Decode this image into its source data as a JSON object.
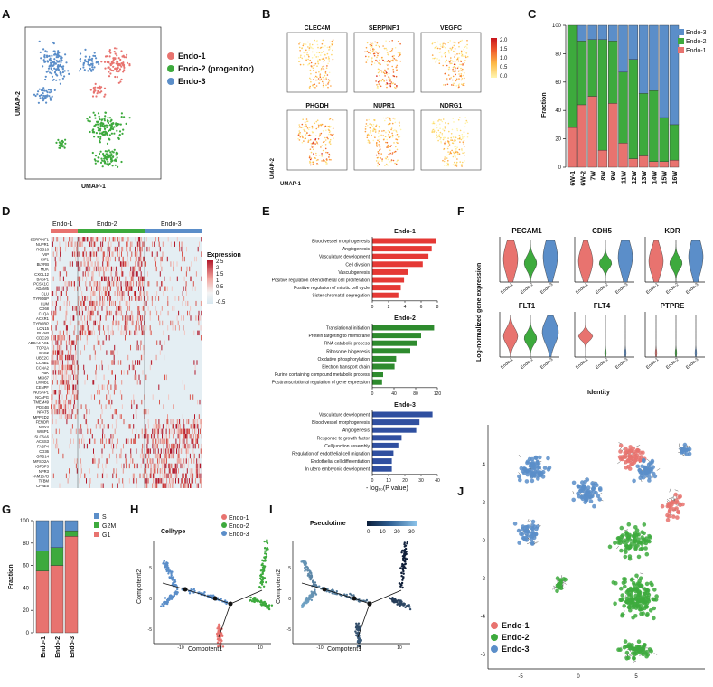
{
  "colors": {
    "endo1": "#E8736F",
    "endo2": "#3DAA3D",
    "endo3": "#5B8EC9",
    "g1": "#E8736F",
    "g2m": "#3DAA3D",
    "s": "#5B8EC9",
    "go1": "#E53935",
    "go2": "#2E8B2E",
    "go3": "#2F4FA0"
  },
  "panel_labels": [
    "A",
    "B",
    "C",
    "D",
    "E",
    "F",
    "G",
    "H",
    "I",
    "J"
  ],
  "panelA": {
    "xlabel": "UMAP-1",
    "ylabel": "UMAP-2",
    "legend": [
      "Endo-1",
      "Endo-2 (progenitor)",
      "Endo-3"
    ]
  },
  "panelB": {
    "genes": [
      "CLEC4M",
      "SERPINF1",
      "VEGFC",
      "PHGDH",
      "NUPR1",
      "NDRG1"
    ],
    "xlabel": "UMAP-1",
    "ylabel": "UMAP-2",
    "colorbar_ticks": [
      "2.0",
      "1.5",
      "1.0",
      "0.5",
      "0.0"
    ]
  },
  "panelC": {
    "ylabel": "Fraction",
    "y_ticks": [
      "0",
      "20",
      "40",
      "60",
      "80",
      "100"
    ],
    "legend": [
      "Endo-3",
      "Endo-2",
      "Endo-1"
    ]
  },
  "panelD": {
    "groups": [
      "Endo-1",
      "Endo-2",
      "Endo-3"
    ],
    "legend_title": "Expression",
    "legend_ticks": [
      "2.5",
      "2",
      "1.5",
      "1",
      "0.5",
      "0",
      "-0.5"
    ],
    "genes": [
      "SERPINF1",
      "NUPR1",
      "RGS16",
      "VIP",
      "KIF1",
      "BLVRB",
      "MDK",
      "CXCL12",
      "BASP1",
      "PCSK1C",
      "ADAM5",
      "CLU",
      "TYROBP",
      "LUM",
      "CD68",
      "C1QA",
      "ACKR1",
      "TYROBP",
      "LCN15",
      "PLVAP",
      "CDC20",
      "ABCA4-AS1",
      "TOP2A",
      "CKS2",
      "UBE2C",
      "CCNB1",
      "CCNA2",
      "PBK",
      "MKI67",
      "LMNB1",
      "CENPF",
      "NUSAP1",
      "NCAPG",
      "TMEM49",
      "PDE4B",
      "NFAT5",
      "MPPED2",
      "FENDR",
      "NPY4",
      "WISP1",
      "SLC6A6",
      "ACSS3",
      "FABP4",
      "CD36",
      "GRB14",
      "MFSD2A",
      "IGFBP3",
      "NPR3",
      "FAM167B",
      "TFBM",
      "CPNE5"
    ]
  },
  "panelE": {
    "xlabel": "- log₁₀(P value)",
    "groups": [
      {
        "title": "Endo-1",
        "x_ticks": [
          "0",
          "2",
          "4",
          "6",
          "8"
        ],
        "terms": [
          {
            "name": "Blood vessel morphogenesis",
            "value": 7.8
          },
          {
            "name": "Angiogenesis",
            "value": 7.3
          },
          {
            "name": "Vasculature development",
            "value": 6.9
          },
          {
            "name": "Cell division",
            "value": 6.2
          },
          {
            "name": "Vasculogenesis",
            "value": 4.4
          },
          {
            "name": "Positive regulation of endothelial cell proliferation",
            "value": 3.9
          },
          {
            "name": "Positive regulation of mitotic cell cycle",
            "value": 3.5
          },
          {
            "name": "Sister chromatid segregation",
            "value": 3.2
          }
        ]
      },
      {
        "title": "Endo-2",
        "x_ticks": [
          "0",
          "40",
          "80",
          "120"
        ],
        "terms": [
          {
            "name": "Translational initiation",
            "value": 114
          },
          {
            "name": "Protein targeting to membrane",
            "value": 90
          },
          {
            "name": "RNA catabolic process",
            "value": 82
          },
          {
            "name": "Ribosome biogenesis",
            "value": 70
          },
          {
            "name": "Oxidative phosphorylation",
            "value": 44
          },
          {
            "name": "Electron transport chain",
            "value": 41
          },
          {
            "name": "Purine containing compound metabolic process",
            "value": 20
          },
          {
            "name": "Posttranscriptional regulation of gene expression",
            "value": 18
          }
        ]
      },
      {
        "title": "Endo-3",
        "x_ticks": [
          "0",
          "10",
          "20",
          "30",
          "40"
        ],
        "terms": [
          {
            "name": "Vasculature development",
            "value": 37
          },
          {
            "name": "Blood vessel morphogenesis",
            "value": 29
          },
          {
            "name": "Angiogenesis",
            "value": 27
          },
          {
            "name": "Response to growth factor",
            "value": 18
          },
          {
            "name": "Cell junction assembly",
            "value": 16
          },
          {
            "name": "Regulation of endothelial cell migration",
            "value": 13
          },
          {
            "name": "Endothelial cell differentiation",
            "value": 12
          },
          {
            "name": "In utero embryonic development",
            "value": 12
          }
        ]
      }
    ]
  },
  "panelF": {
    "ylabel": "Log-normalized gene expression",
    "xlabel": "Identity",
    "genes": [
      "PECAM1",
      "CDH5",
      "KDR",
      "FLT1",
      "FLT4",
      "PTPRE"
    ],
    "groups": [
      "Endo-1",
      "Endo-2",
      "Endo-3"
    ]
  },
  "panelG": {
    "ylabel": "Fraction",
    "y_ticks": [
      "0",
      "20",
      "40",
      "60",
      "80",
      "100"
    ],
    "legend": [
      "S",
      "G2M",
      "G1"
    ]
  },
  "panelH": {
    "title": "Celltype",
    "xlabel": "Compotent1",
    "ylabel": "Compotent2",
    "legend": [
      "Endo-1",
      "Endo-2",
      "Endo-3"
    ],
    "x_ticks": [
      "-10",
      "0",
      "10"
    ],
    "y_ticks": [
      "5",
      "0",
      "-5"
    ]
  },
  "panelI": {
    "title": "Pseudotime",
    "xlabel": "Compotent1",
    "ylabel": "Compotent2",
    "colorbar_ticks": [
      "0",
      "10",
      "20",
      "30"
    ],
    "x_ticks": [
      "-10",
      "0",
      "10"
    ],
    "y_ticks": [
      "5",
      "0",
      "-5"
    ]
  },
  "panelJ": {
    "legend": [
      "Endo-1",
      "Endo-2",
      "Endo-3"
    ],
    "x_ticks": [
      "-5",
      "0",
      "5"
    ],
    "y_ticks": [
      "4",
      "2",
      "0",
      "-2",
      "-4",
      "-6"
    ]
  },
  "chart_data": [
    {
      "type": "bar",
      "panel": "C",
      "stacked": true,
      "categories": [
        "6W-1",
        "6W-2",
        "7W",
        "8W",
        "9W",
        "11W",
        "12W",
        "13W",
        "14W",
        "15W",
        "16W"
      ],
      "ylabel": "Fraction",
      "ylim": [
        0,
        100
      ],
      "series": [
        {
          "name": "Endo-1",
          "values": [
            28,
            44,
            50,
            12,
            45,
            17,
            6,
            8,
            4,
            4,
            5
          ]
        },
        {
          "name": "Endo-2",
          "values": [
            72,
            45,
            40,
            78,
            44,
            50,
            70,
            44,
            50,
            31,
            25
          ]
        },
        {
          "name": "Endo-3",
          "values": [
            0,
            11,
            10,
            10,
            11,
            33,
            24,
            48,
            46,
            65,
            70
          ]
        }
      ]
    },
    {
      "type": "bar",
      "panel": "G",
      "stacked": true,
      "categories": [
        "Endo-1",
        "Endo-2",
        "Endo-3"
      ],
      "ylabel": "Fraction",
      "ylim": [
        0,
        100
      ],
      "series": [
        {
          "name": "G1",
          "values": [
            55,
            60,
            86
          ]
        },
        {
          "name": "G2M",
          "values": [
            18,
            16,
            5
          ]
        },
        {
          "name": "S",
          "values": [
            27,
            24,
            9
          ]
        }
      ]
    },
    {
      "type": "bar",
      "panel": "E",
      "orientation": "horizontal",
      "xlabel": "- log₁₀(P value)",
      "note": "values listed in panelE.groups"
    }
  ]
}
